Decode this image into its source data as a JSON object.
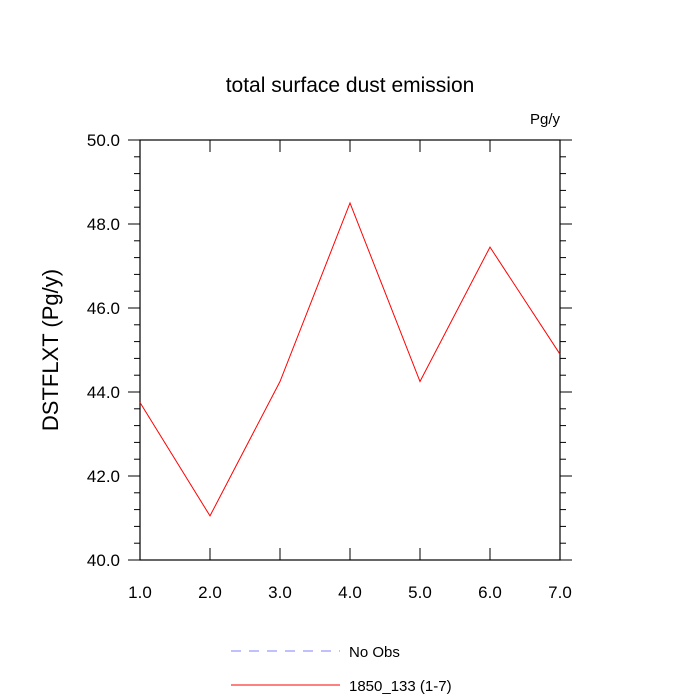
{
  "chart_data": {
    "type": "line",
    "title": "total surface dust emission",
    "units_label": "Pg/y",
    "ylabel": "DSTFLXT  (Pg/y)",
    "xlabel": "",
    "xlim": [
      1.0,
      7.0
    ],
    "ylim": [
      40.0,
      50.0
    ],
    "x_ticks": [
      1.0,
      2.0,
      3.0,
      4.0,
      5.0,
      6.0,
      7.0
    ],
    "x_tick_labels": [
      "1.0",
      "2.0",
      "3.0",
      "4.0",
      "5.0",
      "6.0",
      "7.0"
    ],
    "y_ticks": [
      40.0,
      42.0,
      44.0,
      46.0,
      48.0,
      50.0
    ],
    "y_tick_labels": [
      "40.0",
      "42.0",
      "44.0",
      "46.0",
      "48.0",
      "50.0"
    ],
    "grid": false,
    "legend_position": "bottom",
    "series": [
      {
        "name": "1850_133 (1-7)",
        "color": "#ff0000",
        "style": "solid",
        "x": [
          1.0,
          2.0,
          3.0,
          4.0,
          5.0,
          6.0,
          7.0
        ],
        "y": [
          43.75,
          41.05,
          44.25,
          48.5,
          44.25,
          47.45,
          44.9
        ]
      },
      {
        "name": "No Obs",
        "color": "#8080ff",
        "style": "dashed",
        "x": [],
        "y": []
      }
    ]
  }
}
